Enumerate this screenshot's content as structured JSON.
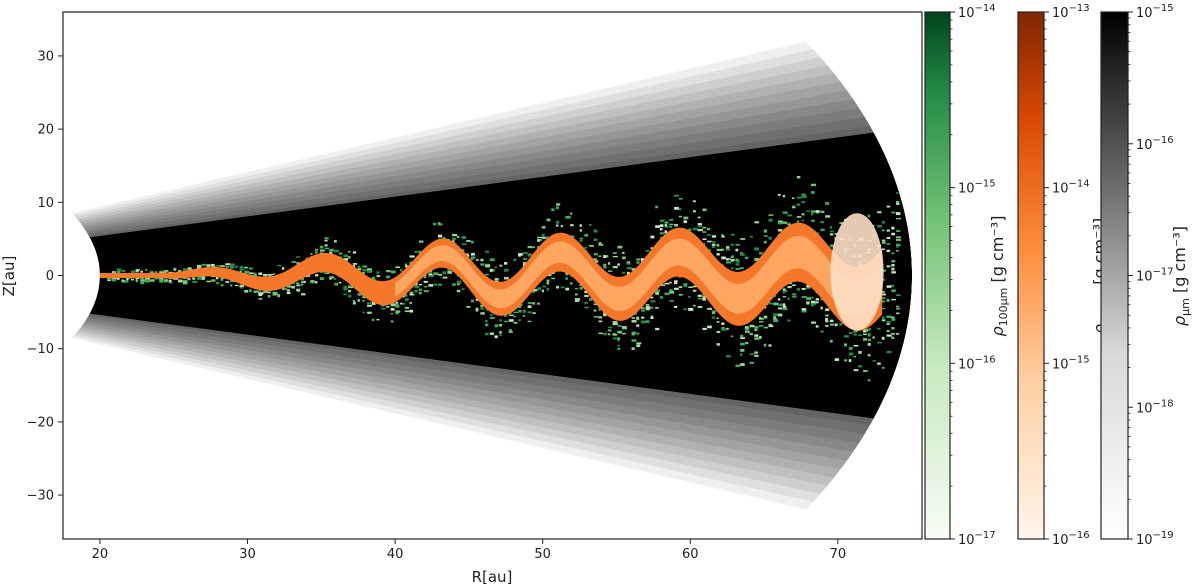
{
  "chart_data": {
    "type": "heatmap",
    "description_axis": {
      "xlabel": "R[au]",
      "ylabel": "Z[au]",
      "xlim": [
        17.5,
        75.7
      ],
      "ylim": [
        -36,
        36
      ],
      "xticks": [
        20,
        30,
        40,
        50,
        60,
        70
      ],
      "yticks": [
        -30,
        -20,
        -10,
        0,
        10,
        20,
        30
      ]
    },
    "colorbars": [
      {
        "label_main": "ρ",
        "label_sub": "100μm",
        "label_unit": " [g cm⁻³]",
        "colormap": "Greens",
        "range": [
          1e-17,
          1e-14
        ],
        "ticks": [
          {
            "base": "10",
            "exp": "−14",
            "value": 1e-14
          },
          {
            "base": "10",
            "exp": "−15",
            "value": 1e-15
          },
          {
            "base": "10",
            "exp": "−16",
            "value": 1e-16
          },
          {
            "base": "10",
            "exp": "−17",
            "value": 1e-17
          }
        ],
        "color_low": "#f7fcf5",
        "color_high": "#00441b"
      },
      {
        "label_main": "ρ",
        "label_sub": "0.1cm",
        "label_unit": " [g cm⁻³]",
        "colormap": "Oranges",
        "range": [
          1e-16,
          1e-13
        ],
        "ticks": [
          {
            "base": "10",
            "exp": "−13",
            "value": 1e-13
          },
          {
            "base": "10",
            "exp": "−14",
            "value": 1e-14
          },
          {
            "base": "10",
            "exp": "−15",
            "value": 1e-15
          },
          {
            "base": "10",
            "exp": "−16",
            "value": 1e-16
          }
        ],
        "color_low": "#fff5eb",
        "color_high": "#7f2704"
      },
      {
        "label_main": "ρ",
        "label_sub": "μm",
        "label_unit": " [g cm⁻³]",
        "colormap": "Greys",
        "range": [
          1e-19,
          1e-15
        ],
        "ticks": [
          {
            "base": "10",
            "exp": "−15",
            "value": 1e-15
          },
          {
            "base": "10",
            "exp": "−16",
            "value": 1e-16
          },
          {
            "base": "10",
            "exp": "−17",
            "value": 1e-17
          },
          {
            "base": "10",
            "exp": "−18",
            "value": 1e-18
          },
          {
            "base": "10",
            "exp": "−19",
            "value": 1e-19
          }
        ],
        "color_low": "#ffffff",
        "color_high": "#000000"
      }
    ]
  }
}
